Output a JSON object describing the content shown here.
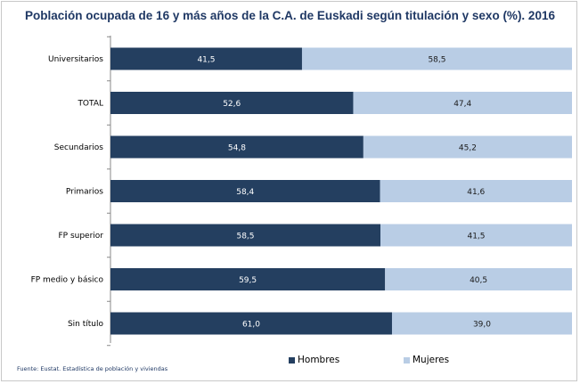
{
  "chart_data": {
    "type": "bar",
    "orientation": "horizontal",
    "stacked": true,
    "title": "Población ocupada de 16 y más años de la C.A. de Euskadi según titulación y sexo (%). 2016",
    "categories": [
      "Universitarios",
      "TOTAL",
      "Secundarios",
      "Primarios",
      "FP superior",
      "FP medio y básico",
      "Sin título"
    ],
    "series": [
      {
        "name": "Hombres",
        "values": [
          41.5,
          52.6,
          54.8,
          58.4,
          58.5,
          59.5,
          61.0
        ],
        "labels": [
          "41,5",
          "52,6",
          "54,8",
          "58,4",
          "58,5",
          "59,5",
          "61,0"
        ],
        "color": "#243f60"
      },
      {
        "name": "Mujeres",
        "values": [
          58.5,
          47.4,
          45.2,
          41.6,
          41.5,
          40.5,
          39.0
        ],
        "labels": [
          "58,5",
          "47,4",
          "45,2",
          "41,6",
          "41,5",
          "40,5",
          "39,0"
        ],
        "color": "#b9cde5"
      }
    ],
    "xlim": [
      0,
      100
    ],
    "xlabel": "",
    "ylabel": "",
    "grid": false,
    "legend": "bottom"
  },
  "source": "Fuente: Eustat. Estadística de población y viviendas"
}
